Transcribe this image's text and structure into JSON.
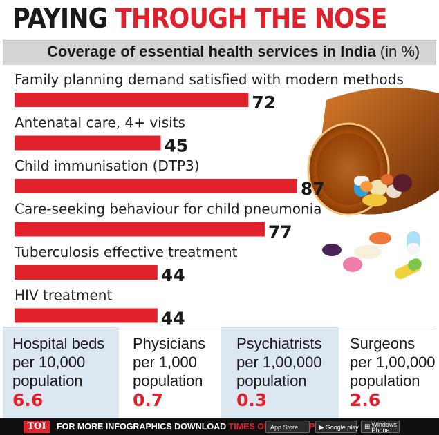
{
  "header": {
    "title_part1": "PAYING",
    "title_part2": "THROUGH THE NOSE",
    "subtitle": "Coverage of essential health services in India",
    "subtitle_unit": "(in %)"
  },
  "chart_data": {
    "type": "bar",
    "orientation": "horizontal",
    "title": "Coverage of essential health services in India (in %)",
    "categories": [
      "Family planning demand satisfied with modern methods",
      "Antenatal care, 4+ visits",
      "Child immunisation (DTP3)",
      "Care-seeking behaviour for child pneumonia",
      "Tuberculosis effective treatment",
      "HIV treatment"
    ],
    "values": [
      72,
      45,
      87,
      77,
      44,
      44
    ],
    "xlim": [
      0,
      100
    ],
    "bar_color": "#e0202a",
    "grid": false,
    "legend": "none"
  },
  "stats": [
    {
      "line1": "Hospital beds",
      "line2": "per 10,000",
      "line3": "population",
      "value": "6.6"
    },
    {
      "line1": "Physicians",
      "line2": "per 1,000",
      "line3": "population",
      "value": "0.7"
    },
    {
      "line1": "Psychiatrists",
      "line2": "per 1,00,000",
      "line3": "population",
      "value": "0.3"
    },
    {
      "line1": "Surgeons",
      "line2": "per 1,00,000",
      "line3": "population",
      "value": "2.6"
    }
  ],
  "footer": {
    "logo": "TOI",
    "promo_text": "FOR MORE  INFOGRAPHICS DOWNLOAD",
    "promo_app": "TIMES OF INDIA APP",
    "appstore_small": "Available on the",
    "appstore": "App Store",
    "googleplay": "Google play",
    "windows_line1": "Windows",
    "windows_line2": "Phone"
  },
  "colors": {
    "accent": "#e0202a",
    "panel": "#dce7f2",
    "subbar": "#d4d4d4",
    "footer": "#101010"
  },
  "icons": [
    "pill-bottle-illustration",
    "apple-icon",
    "google-play-icon",
    "windows-icon"
  ]
}
